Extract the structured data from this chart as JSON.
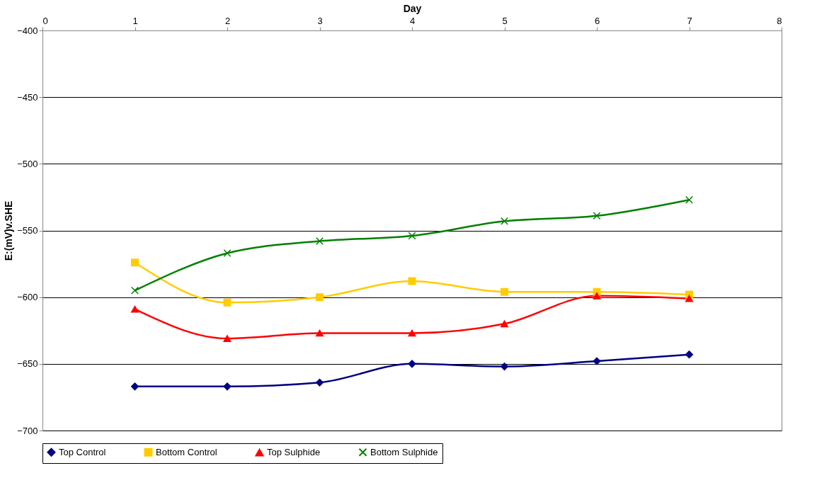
{
  "chart_data": {
    "type": "line",
    "xlabel": "Day",
    "ylabel": "E:(mV)v.SHE",
    "x": [
      1,
      2,
      3,
      4,
      5,
      6,
      7
    ],
    "xlim": [
      0,
      8
    ],
    "xticks": [
      0,
      1,
      2,
      3,
      4,
      5,
      6,
      7,
      8
    ],
    "ylim": [
      -700,
      -400
    ],
    "yticks": [
      -700,
      -650,
      -600,
      -550,
      -500,
      -450,
      -400
    ],
    "grid": "y",
    "legend": "bottom",
    "series": [
      {
        "name": "Top Control",
        "color": "#000080",
        "marker": "diamond",
        "values": [
          -667,
          -667,
          -664,
          -650,
          -652,
          -648,
          -643
        ]
      },
      {
        "name": "Bottom Control",
        "color": "#ffcc00",
        "marker": "square",
        "values": [
          -574,
          -604,
          -600,
          -588,
          -596,
          -596,
          -598
        ]
      },
      {
        "name": "Top Sulphide",
        "color": "#ff0000",
        "marker": "triangle",
        "values": [
          -609,
          -631,
          -627,
          -627,
          -620,
          -599,
          -601
        ]
      },
      {
        "name": "Bottom Sulphide",
        "color": "#008000",
        "marker": "cross",
        "values": [
          -595,
          -567,
          -558,
          -554,
          -543,
          -539,
          -527
        ]
      }
    ]
  }
}
